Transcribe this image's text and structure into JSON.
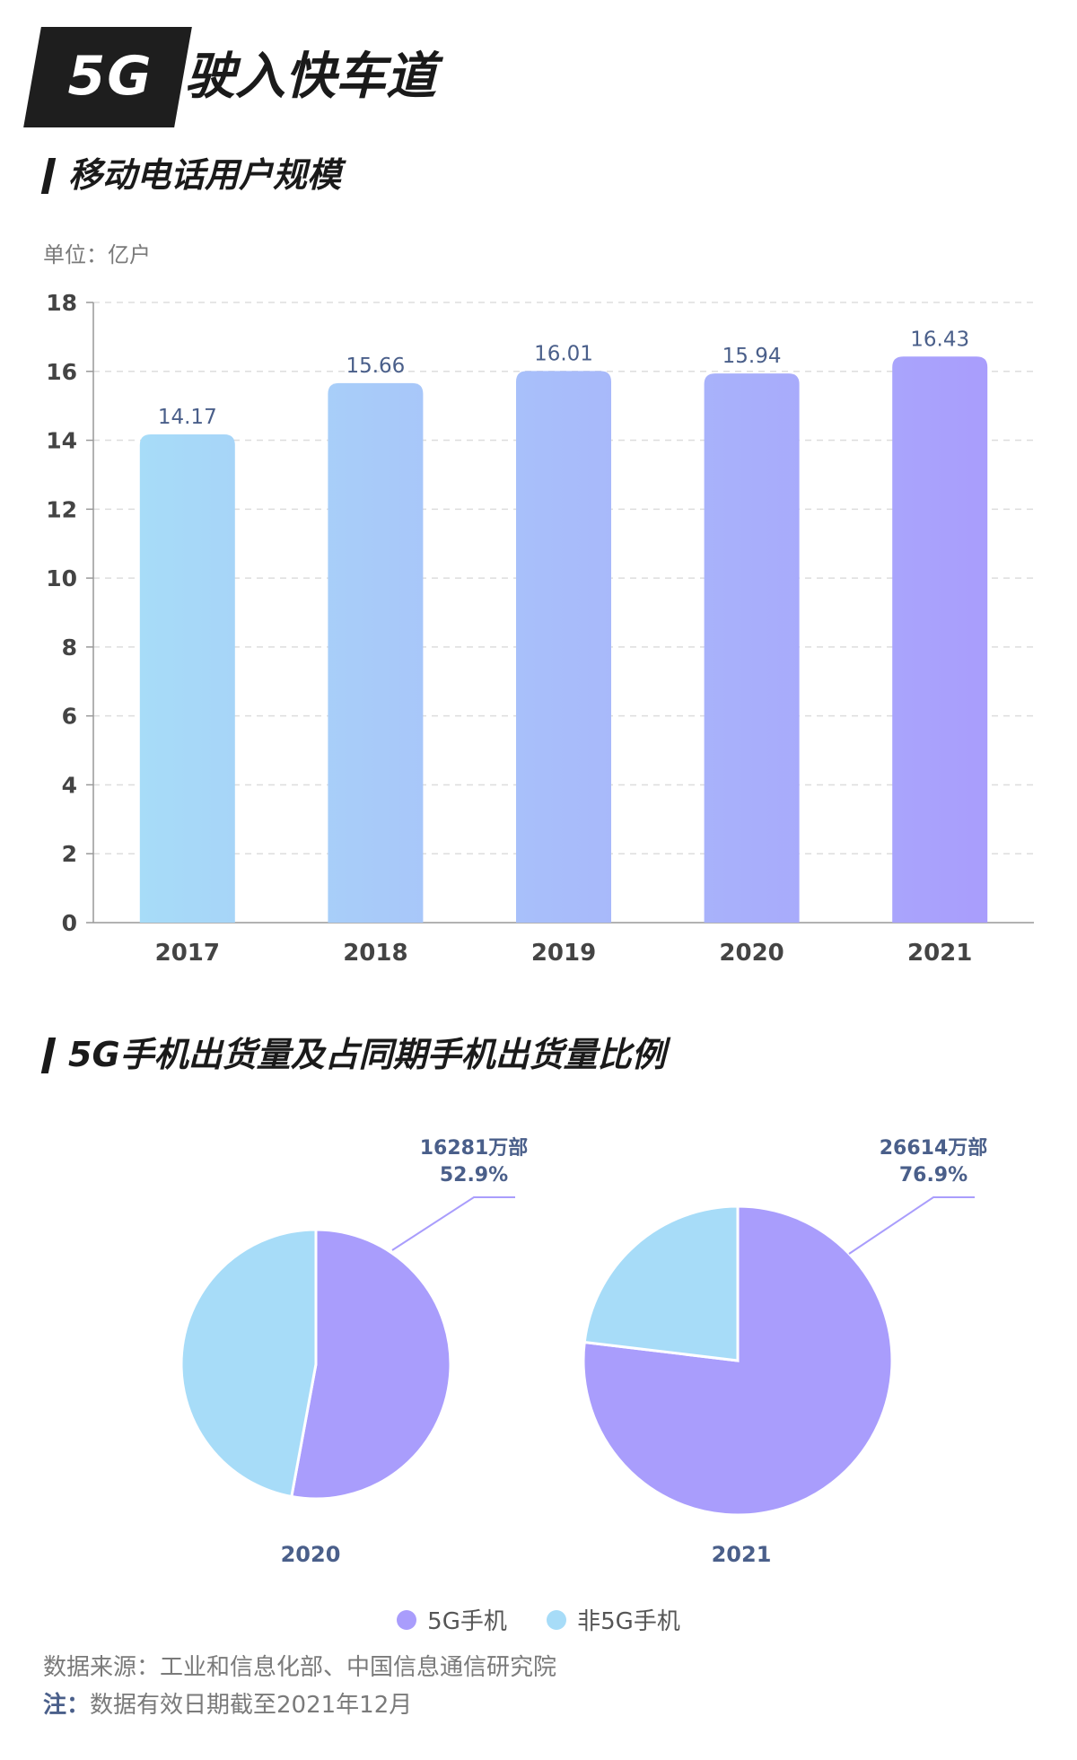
{
  "header": {
    "badge": "5G",
    "title": "驶入快车道"
  },
  "sections": {
    "bar_title": "移动电话用户规模",
    "pie_title": "5G手机出货量及占同期手机出货量比例"
  },
  "colors": {
    "bar_start": "#a7dcf8",
    "bar_end": "#a99dfc",
    "five_g": "#a99dfc",
    "non_five_g": "#a7dcf8",
    "label": "#4a5f8a"
  },
  "chart_data": [
    {
      "type": "bar",
      "unit_label": "单位：亿户",
      "categories": [
        "2017",
        "2018",
        "2019",
        "2020",
        "2021"
      ],
      "values": [
        14.17,
        15.66,
        16.01,
        15.94,
        16.43
      ],
      "value_labels": [
        "14.17",
        "15.66",
        "16.01",
        "15.94",
        "16.43"
      ],
      "ylim": [
        0,
        18
      ],
      "yticks": [
        "0",
        "2",
        "4",
        "6",
        "8",
        "10",
        "12",
        "14",
        "16",
        "18"
      ],
      "grid": true
    },
    {
      "type": "pie",
      "charts": [
        {
          "year": "2020",
          "slices": [
            {
              "name": "5G手机",
              "value": 52.9
            },
            {
              "name": "非5G手机",
              "value": 47.1
            }
          ],
          "callout": {
            "units": "16281万部",
            "percent": "52.9%"
          }
        },
        {
          "year": "2021",
          "slices": [
            {
              "name": "5G手机",
              "value": 76.9
            },
            {
              "name": "非5G手机",
              "value": 23.1
            }
          ],
          "callout": {
            "units": "26614万部",
            "percent": "76.9%"
          }
        }
      ],
      "legend": [
        "5G手机",
        "非5G手机"
      ],
      "legend_position": "bottom"
    }
  ],
  "footer": {
    "source": "数据来源：工业和信息化部、中国信息通信研究院",
    "note_label": "注：",
    "note_text": "数据有效日期截至2021年12月"
  }
}
